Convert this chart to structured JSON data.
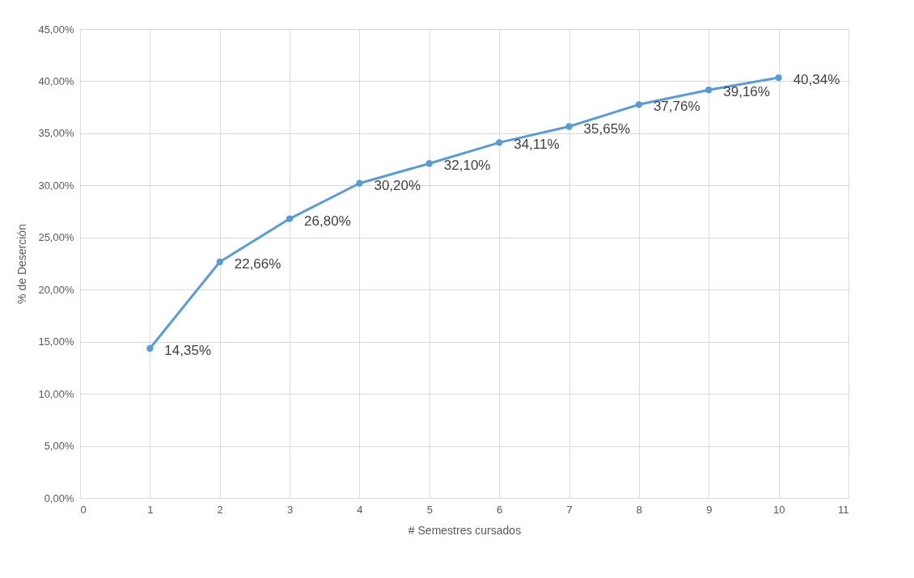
{
  "chart_data": {
    "type": "line",
    "xlabel": "# Semestres cursados",
    "ylabel": "% de Deserción",
    "x": [
      1,
      2,
      3,
      4,
      5,
      6,
      7,
      8,
      9,
      10
    ],
    "series": [
      {
        "color": "#5b9bd5",
        "values": [
          14.35,
          22.66,
          26.8,
          30.2,
          32.1,
          34.11,
          35.65,
          37.76,
          39.16,
          40.34
        ],
        "value_labels": [
          "14,35%",
          "22,66%",
          "26,80%",
          "30,20%",
          "32,10%",
          "34,11%",
          "35,65%",
          "37,76%",
          "39,16%",
          "40,34%"
        ]
      }
    ],
    "xlim": [
      0,
      11
    ],
    "xticks": [
      0,
      1,
      2,
      3,
      4,
      5,
      6,
      7,
      8,
      9,
      10,
      11
    ],
    "ylim": [
      0,
      45
    ],
    "yticks": [
      {
        "value": 0,
        "label": "0,00%"
      },
      {
        "value": 5,
        "label": "5,00%"
      },
      {
        "value": 10,
        "label": "10,00%"
      },
      {
        "value": 15,
        "label": "15,00%"
      },
      {
        "value": 20,
        "label": "20,00%"
      },
      {
        "value": 25,
        "label": "25,00%"
      },
      {
        "value": 30,
        "label": "30,00%"
      },
      {
        "value": 35,
        "label": "35,00%"
      },
      {
        "value": 40,
        "label": "40,00%"
      },
      {
        "value": 45,
        "label": "45,00%"
      }
    ],
    "grid": true,
    "marker": "circle",
    "line_style": "solid"
  }
}
